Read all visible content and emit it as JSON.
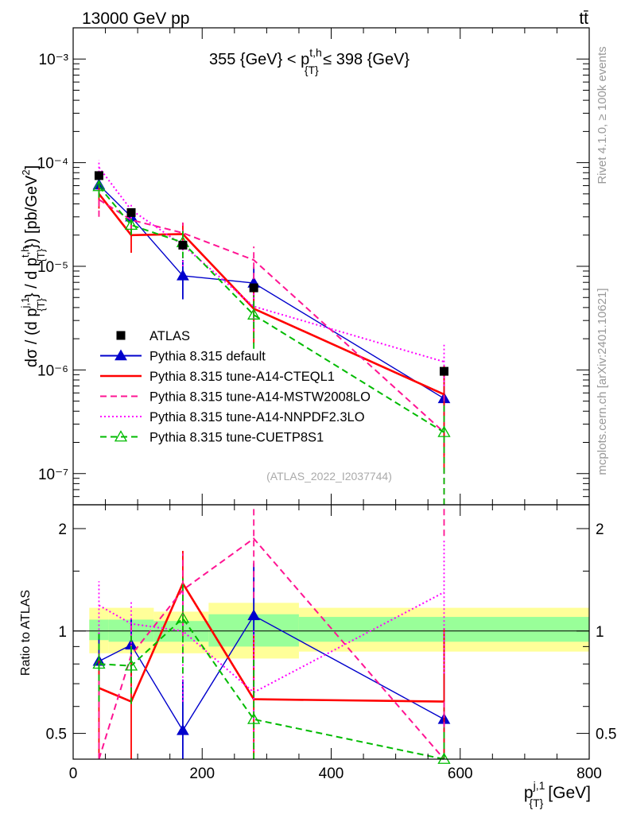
{
  "header": {
    "energy_label": "13000 GeV pp",
    "process_label": "tt̄",
    "range_title_prefix": "355 {GeV} < p",
    "range_title_sup": "t,h",
    "range_title_sub": "{T}",
    "range_title_suffix": " ≤ 398 {GeV}",
    "watermark": "(ATLAS_2022_I2037744)",
    "rivet_label": "Rivet 4.1.0, ≥ 100k events",
    "mcplots_label": "mcplots.cern.ch [arXiv:2401.10621]"
  },
  "axis": {
    "ylabel_main": "dσ / (d p^{j,1}_{T} / d p^{t,h}_{T}) [pb/GeV²]",
    "ylabel_ratio": "Ratio to ATLAS",
    "xlabel": "p^{j,1}_{T} [GeV]",
    "xlabel_base": "p",
    "xlabel_sup": "j,1",
    "xlabel_sub": "{T}",
    "xlabel_unit": "[GeV]",
    "ylabel_parts": {
      "prefix": "dσ / (d p",
      "sup1": "j,1",
      "sub1": "{T}",
      "mid": "} / d p",
      "sup2": "t,h",
      "sub2": "{T}",
      "suffix": "}) [pb/GeV",
      "unit_sup": "2",
      "close": "]"
    }
  },
  "chart_data": [
    {
      "type": "line",
      "panel": "main",
      "title": "355 {GeV} < p_{T}^{t,h} ≤ 398 {GeV}",
      "xlim": [
        0,
        800
      ],
      "ylim": [
        5e-08,
        0.002
      ],
      "yscale": "log",
      "x_ticks": [
        0,
        200,
        400,
        600,
        800
      ],
      "y_ticks": [
        {
          "value": 1e-07,
          "label": "10⁻⁷"
        },
        {
          "value": 1e-06,
          "label": "10⁻⁶"
        },
        {
          "value": 1e-05,
          "label": "10⁻⁵"
        },
        {
          "value": 0.0001,
          "label": "10⁻⁴"
        },
        {
          "value": 0.001,
          "label": "10⁻³"
        }
      ],
      "data": {
        "name": "ATLAS",
        "x": [
          40,
          90,
          170,
          280,
          575
        ],
        "bin_edges": [
          25,
          55,
          125,
          210,
          350,
          800
        ],
        "y": [
          7.5e-05,
          3.3e-05,
          1.6e-05,
          6.2e-06,
          9.7e-07
        ]
      },
      "series": [
        {
          "name": "Pythia 8.315 default",
          "color": "#0000cc",
          "style": "solid",
          "marker": "triangle",
          "x": [
            40,
            90,
            170,
            280,
            575
          ],
          "y": [
            6.1e-05,
            3e-05,
            8.1e-06,
            6.9e-06,
            5.3e-07
          ],
          "err_lo": [
            4.8e-05,
            2.4e-05,
            4.8e-06,
            4e-06,
            1.5e-07
          ],
          "err_hi": [
            7.4e-05,
            3.6e-05,
            1.15e-05,
            9.8e-06,
            9.5e-07
          ]
        },
        {
          "name": "Pythia 8.315 tune-A14-CTEQL1",
          "color": "#ff0000",
          "style": "solid",
          "marker": "none",
          "x": [
            40,
            90,
            170,
            280,
            575
          ],
          "y": [
            5e-05,
            2e-05,
            2.05e-05,
            3.9e-06,
            5.8e-07
          ],
          "err_lo": [
            3.6e-05,
            1.35e-05,
            1.5e-05,
            1.8e-06,
            1e-07
          ],
          "err_hi": [
            6.4e-05,
            2.65e-05,
            2.6e-05,
            6e-06,
            1.1e-06
          ]
        },
        {
          "name": "Pythia 8.315 tune-A14-MSTW2008LO",
          "color": "#ff1493",
          "style": "dashed",
          "marker": "none",
          "x": [
            40,
            90,
            170,
            280,
            575
          ],
          "y": [
            4.4e-05,
            2.8e-05,
            2.1e-05,
            1.15e-05,
            2.5e-07
          ],
          "err_lo": [
            3e-05,
            2.2e-05,
            1.55e-05,
            7.5e-06,
            2e-08
          ],
          "err_hi": [
            5.8e-05,
            3.4e-05,
            2.65e-05,
            1.55e-05,
            6e-07
          ]
        },
        {
          "name": "Pythia 8.315 tune-A14-NNPDF2.3LO",
          "color": "#ff00ff",
          "style": "dotted",
          "marker": "none",
          "x": [
            40,
            90,
            170,
            280,
            575
          ],
          "y": [
            9e-05,
            3.5e-05,
            1.6e-05,
            4.1e-06,
            1.2e-06
          ],
          "err_lo": [
            7.4e-05,
            2.9e-05,
            1e-05,
            2e-06,
            7e-07
          ],
          "err_hi": [
            0.000106,
            4.1e-05,
            2.2e-05,
            6.2e-06,
            1.75e-06
          ]
        },
        {
          "name": "Pythia 8.315 tune-CUETP8S1",
          "color": "#00bb00",
          "style": "dashed",
          "marker": "open-triangle",
          "x": [
            40,
            90,
            170,
            280,
            575
          ],
          "y": [
            5.9e-05,
            2.5e-05,
            1.7e-05,
            3.4e-06,
            2.5e-07
          ],
          "err_lo": [
            4.6e-05,
            2e-05,
            1.2e-05,
            1.6e-06,
            5e-08
          ],
          "err_hi": [
            7.2e-05,
            3e-05,
            2.2e-05,
            5.2e-06,
            5e-07
          ]
        }
      ],
      "legend": {
        "placement": "lower-left"
      }
    },
    {
      "type": "line",
      "panel": "ratio",
      "ylabel": "Ratio to ATLAS",
      "xlim": [
        0,
        800
      ],
      "ylim": [
        0.42,
        2.35
      ],
      "yscale": "log",
      "y_ticks": [
        0.5,
        1,
        2
      ],
      "y_tick_labels": [
        "0.5",
        "1",
        "2"
      ],
      "reference_line": 1,
      "bands": {
        "bin_edges": [
          25,
          55,
          125,
          210,
          350,
          800
        ],
        "inner": [
          [
            0.94,
            1.08
          ],
          [
            0.93,
            1.08
          ],
          [
            0.93,
            1.07
          ],
          [
            0.9,
            1.12
          ],
          [
            0.93,
            1.1
          ]
        ],
        "outer": [
          [
            0.86,
            1.17
          ],
          [
            0.86,
            1.17
          ],
          [
            0.86,
            1.14
          ],
          [
            0.83,
            1.21
          ],
          [
            0.87,
            1.17
          ]
        ],
        "inner_color": "#99ff99",
        "outer_color": "#ffff99"
      },
      "series": [
        {
          "name": "Pythia 8.315 default",
          "color": "#0000cc",
          "style": "solid",
          "marker": "triangle",
          "x": [
            40,
            90,
            170,
            280,
            575
          ],
          "y": [
            0.815,
            0.91,
            0.51,
            1.11,
            0.55
          ],
          "err_lo": [
            0.64,
            0.73,
            0.3,
            0.64,
            0.16
          ],
          "err_hi": [
            0.99,
            1.09,
            0.72,
            1.58,
            0.98
          ]
        },
        {
          "name": "Pythia 8.315 tune-A14-CTEQL1",
          "color": "#ff0000",
          "style": "solid",
          "marker": "none",
          "x": [
            40,
            90,
            170,
            280,
            575
          ],
          "y": [
            0.68,
            0.62,
            1.38,
            0.63,
            0.62
          ],
          "err_lo": [
            0.42,
            0.42,
            0.98,
            0.42,
            0.42
          ],
          "err_hi": [
            0.86,
            0.82,
            1.72,
            0.97,
            1.02
          ]
        },
        {
          "name": "Pythia 8.315 tune-A14-MSTW2008LO",
          "color": "#ff1493",
          "style": "dashed",
          "marker": "none",
          "x": [
            40,
            90,
            170,
            280,
            575
          ],
          "y": [
            0.42,
            0.85,
            1.32,
            1.87,
            0.26
          ],
          "err_lo": [
            0.42,
            0.66,
            0.95,
            1.25,
            0.42
          ],
          "err_hi": [
            0.74,
            1.04,
            1.69,
            2.35,
            0.62
          ]
        },
        {
          "name": "Pythia 8.315 tune-A14-NNPDF2.3LO",
          "color": "#ff00ff",
          "style": "dotted",
          "marker": "none",
          "x": [
            40,
            90,
            170,
            280,
            575
          ],
          "y": [
            1.19,
            1.05,
            1.0,
            0.66,
            1.3
          ],
          "err_lo": [
            0.98,
            0.87,
            0.62,
            0.42,
            0.75
          ],
          "err_hi": [
            1.4,
            1.23,
            1.38,
            1.0,
            1.85
          ]
        },
        {
          "name": "Pythia 8.315 tune-CUETP8S1",
          "color": "#00bb00",
          "style": "dashed",
          "marker": "open-triangle",
          "x": [
            40,
            90,
            170,
            280,
            575
          ],
          "y": [
            0.8,
            0.79,
            1.09,
            0.55,
            0.26
          ],
          "err_lo": [
            0.62,
            0.61,
            0.75,
            0.42,
            0.42
          ],
          "err_hi": [
            0.98,
            0.97,
            1.43,
            0.84,
            0.52
          ]
        }
      ]
    }
  ]
}
